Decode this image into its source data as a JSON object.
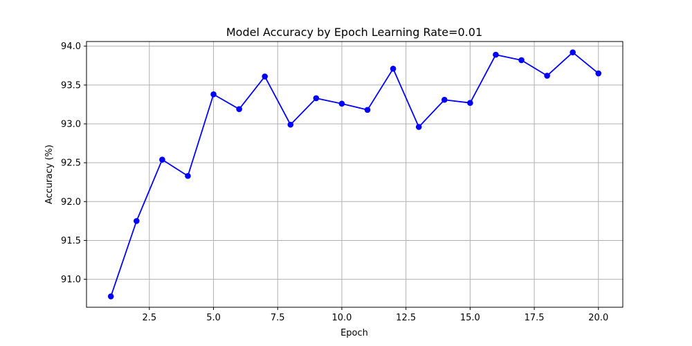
{
  "chart_data": {
    "type": "line",
    "title": "Model Accuracy by Epoch Learning Rate=0.01",
    "xlabel": "Epoch",
    "ylabel": "Accuracy (%)",
    "x": [
      1,
      2,
      3,
      4,
      5,
      6,
      7,
      8,
      9,
      10,
      11,
      12,
      13,
      14,
      15,
      16,
      17,
      18,
      19,
      20
    ],
    "series": [
      {
        "values": [
          90.78,
          91.75,
          92.54,
          92.33,
          93.38,
          93.19,
          93.61,
          92.99,
          93.33,
          93.26,
          93.18,
          93.71,
          92.96,
          93.31,
          93.27,
          93.89,
          93.82,
          93.62,
          93.92,
          93.65
        ],
        "color": "#0000ff",
        "marker": "circle"
      }
    ],
    "xlim": [
      0.05,
      20.95
    ],
    "ylim": [
      90.64,
      94.06
    ],
    "xticks": [
      2.5,
      5.0,
      7.5,
      10.0,
      12.5,
      15.0,
      17.5,
      20.0
    ],
    "xtick_labels": [
      "2.5",
      "5.0",
      "7.5",
      "10.0",
      "12.5",
      "15.0",
      "17.5",
      "20.0"
    ],
    "yticks": [
      91.0,
      91.5,
      92.0,
      92.5,
      93.0,
      93.5,
      94.0
    ],
    "ytick_labels": [
      "91.0",
      "91.5",
      "92.0",
      "92.5",
      "93.0",
      "93.5",
      "94.0"
    ],
    "grid": true,
    "legend": "none"
  }
}
